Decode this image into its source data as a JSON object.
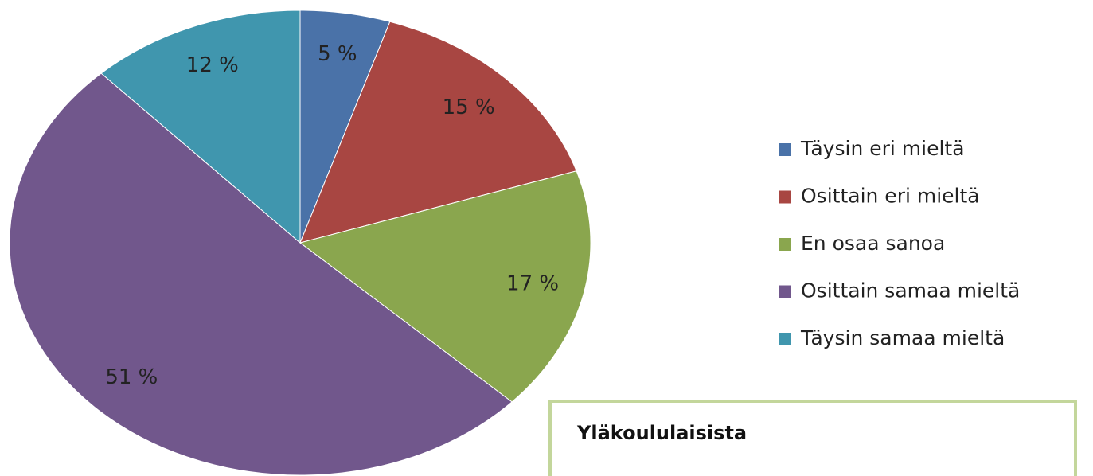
{
  "chart_data": {
    "type": "pie",
    "categories": [
      "Täysin eri mieltä",
      "Osittain eri mieltä",
      "En osaa sanoa",
      "Osittain samaa mieltä",
      "Täysin samaa mieltä"
    ],
    "values": [
      5,
      15,
      17,
      51,
      12
    ],
    "value_labels": [
      "5 %",
      "15 %",
      "17 %",
      "51 %",
      "12 %"
    ],
    "colors": [
      "#4a72a8",
      "#a84642",
      "#8aa64e",
      "#71578c",
      "#4096ae"
    ],
    "legend": "right",
    "annotation": "Yläkoululaisista"
  }
}
